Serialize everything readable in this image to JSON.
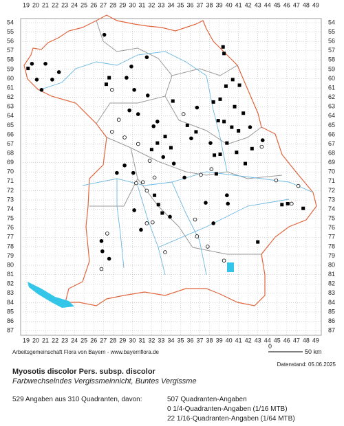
{
  "map": {
    "columns": [
      19,
      20,
      21,
      22,
      23,
      24,
      25,
      26,
      27,
      28,
      29,
      30,
      31,
      32,
      33,
      34,
      35,
      36,
      37,
      38,
      39,
      40,
      41,
      42,
      43,
      44,
      45,
      46,
      47,
      48,
      49
    ],
    "rows": [
      54,
      55,
      56,
      57,
      58,
      59,
      60,
      61,
      62,
      63,
      64,
      65,
      66,
      67,
      68,
      69,
      70,
      71,
      72,
      73,
      74,
      75,
      76,
      77,
      78,
      79,
      80,
      81,
      82,
      83,
      84,
      85,
      86,
      87
    ]
  },
  "footer": {
    "credit": "Arbeitsgemeinschaft Flora von Bayern - www.bayernflora.de",
    "scale_start": "0",
    "scale_end": "50 km",
    "date": "Datenstand: 05.06.2025",
    "title": "Myosotis discolor Pers. subsp. discolor",
    "subtitle": "Farbwechselndes Vergissmeinnicht, Buntes Vergissme",
    "summary": "529 Angaben aus 310 Quadranten, davon:",
    "counts": [
      "507 Quadranten-Angaben",
      "0 1/4-Quadranten-Angaben (1/16 MTB)",
      "22 1/16-Quadranten-Angaben (1/64 MTB)"
    ]
  }
}
